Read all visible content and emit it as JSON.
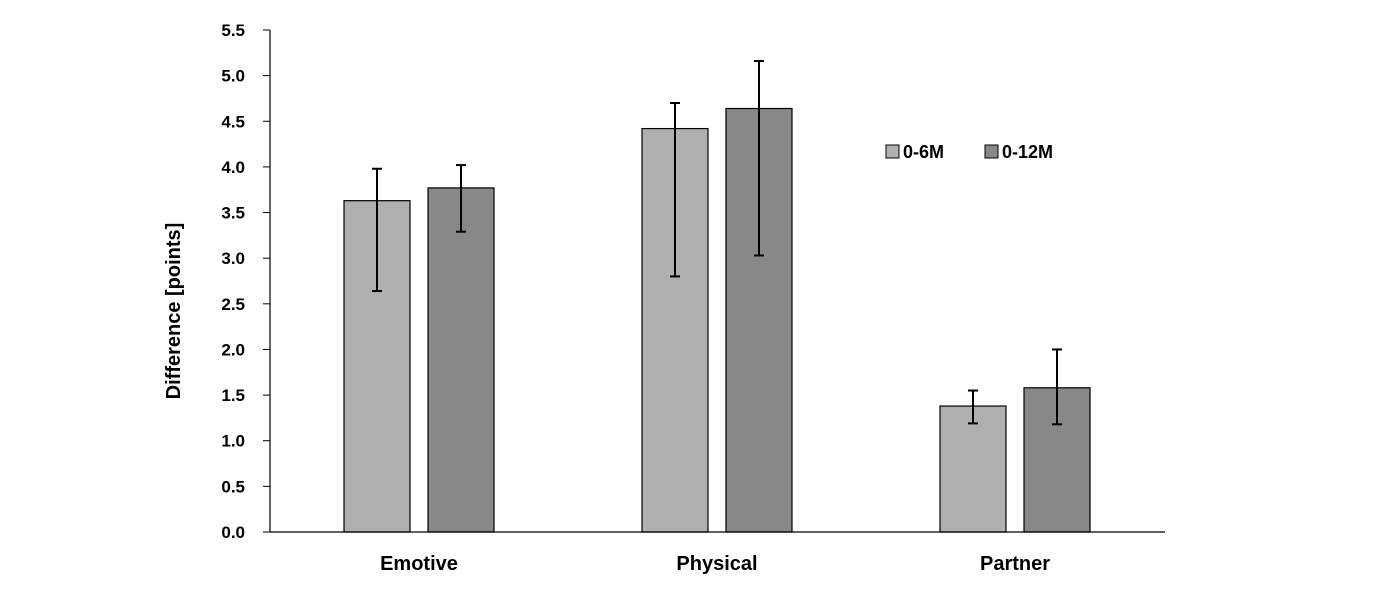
{
  "chart_data": {
    "type": "bar",
    "categories": [
      "Emotive",
      "Physical",
      "Partner"
    ],
    "series": [
      {
        "name": "0-6M",
        "color": "#b0b0b0",
        "values": [
          3.63,
          4.42,
          1.38
        ],
        "error_low": [
          2.64,
          2.8,
          1.19
        ],
        "error_high": [
          3.98,
          4.7,
          1.55
        ]
      },
      {
        "name": "0-12M",
        "color": "#888888",
        "values": [
          3.77,
          4.64,
          1.58
        ],
        "error_low": [
          3.29,
          3.03,
          1.18
        ],
        "error_high": [
          4.02,
          5.16,
          2.0
        ]
      }
    ],
    "ylabel": "Difference [points]",
    "xlabel": "",
    "ylim": [
      0,
      5.5
    ],
    "yticks": [
      "0.0",
      "0.5",
      "1.0",
      "1.5",
      "2.0",
      "2.5",
      "3.0",
      "3.5",
      "4.0",
      "4.5",
      "5.0",
      "5.5"
    ],
    "grid": false,
    "legend_position": "top-right"
  }
}
